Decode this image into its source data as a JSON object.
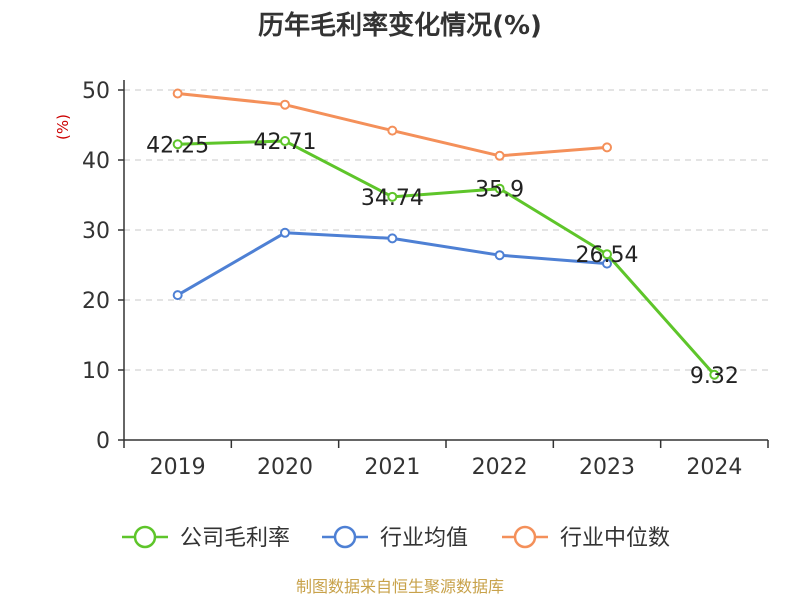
{
  "chart_data": {
    "type": "line",
    "title": "历年毛利率变化情况(%)",
    "ylabel": "(%)",
    "categories": [
      "2019",
      "2020",
      "2021",
      "2022",
      "2023",
      "2024"
    ],
    "ylim": [
      0,
      50
    ],
    "yticks": [
      0,
      10,
      20,
      30,
      40,
      50
    ],
    "grid": true,
    "legend_position": "bottom",
    "series": [
      {
        "name": "公司毛利率",
        "color": "#5ec52a",
        "values": [
          42.25,
          42.71,
          34.74,
          35.9,
          26.54,
          9.32
        ],
        "labels": [
          "42.25",
          "42.71",
          "34.74",
          "35.9",
          "26.54",
          "9.32"
        ]
      },
      {
        "name": "行业均值",
        "color": "#4e80d4",
        "values": [
          20.7,
          29.6,
          28.8,
          26.4,
          25.2,
          null
        ]
      },
      {
        "name": "行业中位数",
        "color": "#f4905a",
        "values": [
          49.5,
          47.9,
          44.2,
          40.6,
          41.8,
          null
        ]
      }
    ]
  },
  "footer": {
    "source": "制图数据来自恒生聚源数据库"
  }
}
